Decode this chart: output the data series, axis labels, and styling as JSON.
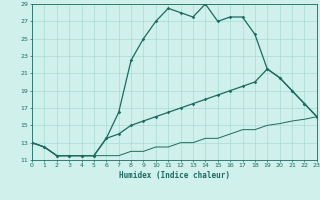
{
  "xlabel": "Humidex (Indice chaleur)",
  "bg_color": "#cff0eb",
  "grid_color": "#9fd8d0",
  "line_color": "#1a6b60",
  "xlim": [
    0,
    23
  ],
  "ylim": [
    11,
    29
  ],
  "xticks": [
    0,
    1,
    2,
    3,
    4,
    5,
    6,
    7,
    8,
    9,
    10,
    11,
    12,
    13,
    14,
    15,
    16,
    17,
    18,
    19,
    20,
    21,
    22,
    23
  ],
  "yticks": [
    11,
    13,
    15,
    17,
    19,
    21,
    23,
    25,
    27,
    29
  ],
  "curve1_x": [
    0,
    1,
    2,
    3,
    4,
    5,
    6,
    7,
    8,
    9,
    10,
    11,
    12,
    13,
    14,
    15,
    16,
    17,
    18,
    19,
    20,
    21,
    22,
    23
  ],
  "curve1_y": [
    13,
    12.5,
    11.5,
    11.5,
    11.5,
    11.5,
    13.5,
    16.5,
    22.5,
    25,
    27,
    28.5,
    28,
    27.5,
    29,
    27,
    27.5,
    27.5,
    25.5,
    21.5,
    20.5,
    19,
    17.5,
    16
  ],
  "curve2_x": [
    0,
    1,
    2,
    3,
    4,
    5,
    6,
    7,
    8,
    9,
    10,
    11,
    12,
    13,
    14,
    15,
    16,
    17,
    18,
    19,
    20,
    21,
    22,
    23
  ],
  "curve2_y": [
    13,
    12.5,
    11.5,
    11.5,
    11.5,
    11.5,
    13.5,
    14.0,
    15.0,
    15.5,
    16.0,
    16.5,
    17.0,
    17.5,
    18.0,
    18.5,
    19.0,
    19.5,
    20.0,
    21.5,
    20.5,
    19.0,
    17.5,
    16.0
  ],
  "curve3_x": [
    0,
    1,
    2,
    3,
    4,
    5,
    6,
    7,
    8,
    9,
    10,
    11,
    12,
    13,
    14,
    15,
    16,
    17,
    18,
    19,
    20,
    21,
    22,
    23
  ],
  "curve3_y": [
    13,
    12.5,
    11.5,
    11.5,
    11.5,
    11.5,
    11.5,
    11.5,
    12.0,
    12.0,
    12.5,
    12.5,
    13.0,
    13.0,
    13.5,
    13.5,
    14.0,
    14.5,
    14.5,
    15.0,
    15.2,
    15.5,
    15.7,
    16.0
  ]
}
